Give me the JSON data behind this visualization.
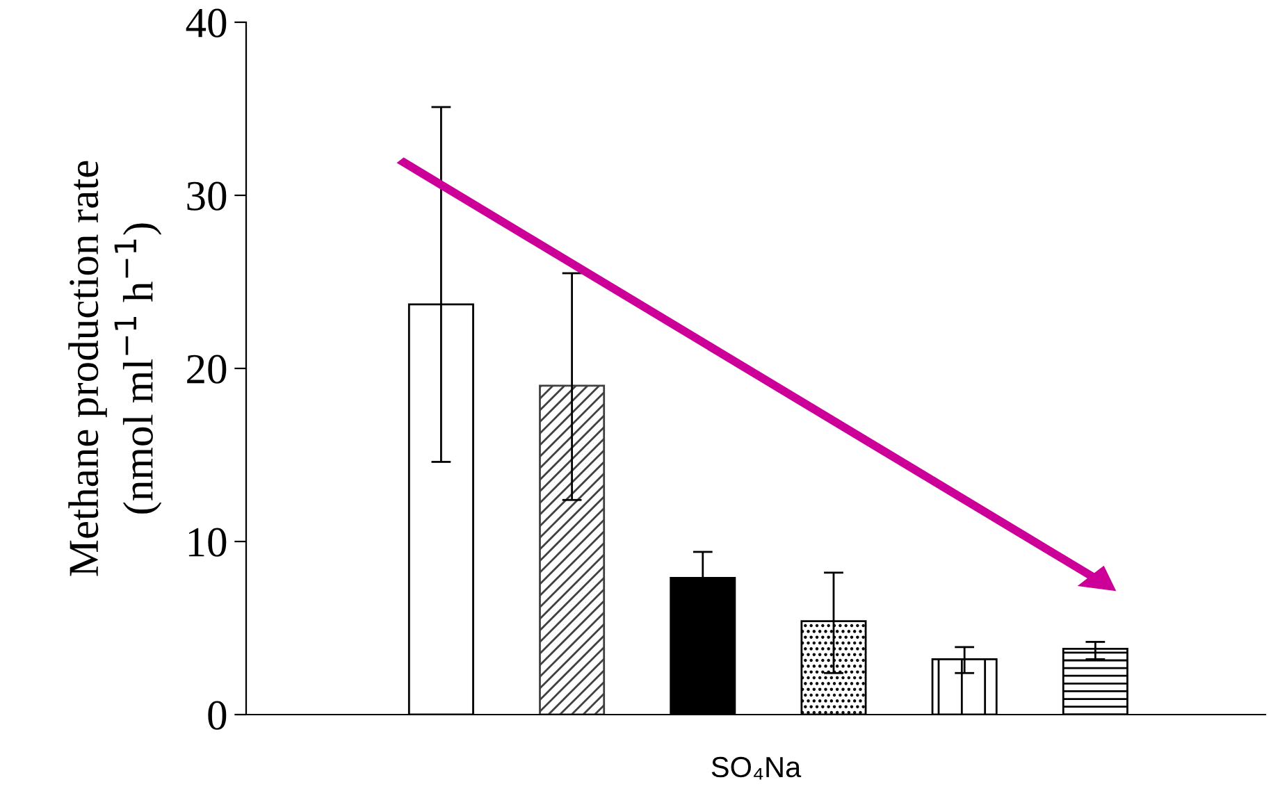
{
  "chart_data": {
    "type": "bar",
    "categories": [
      null,
      null,
      null,
      null,
      null,
      null
    ],
    "values": [
      23.7,
      19.0,
      7.9,
      5.4,
      3.2,
      3.8
    ],
    "errors": [
      [
        14.6,
        35.1
      ],
      [
        12.4,
        25.5
      ],
      1.5,
      [
        2.4,
        8.2
      ],
      [
        2.4,
        3.9
      ],
      [
        3.2,
        4.2
      ]
    ],
    "colors": [
      "#ffffff",
      "#404040",
      "#000000",
      "#000000",
      "#000000",
      "#000000"
    ],
    "xlabel": "SO₄Na",
    "ylabel": "Methane production rate\n(nmol ml$^{−1}$ h$^{−1}$)",
    "ylim": [
      0,
      40
    ],
    "yticks": [
      0,
      10,
      20,
      30,
      40
    ],
    "grid": false,
    "legend": false
  }
}
